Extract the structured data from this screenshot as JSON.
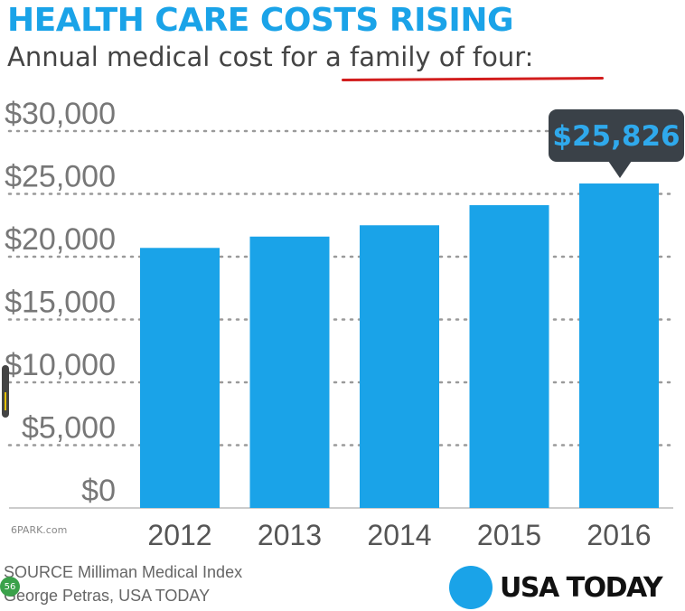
{
  "header": {
    "title": "HEALTH CARE COSTS RISING",
    "subtitle": "Annual medical cost for a family of four:"
  },
  "chart_data": {
    "type": "bar",
    "title": "HEALTH CARE COSTS RISING",
    "subtitle": "Annual medical cost for a family of four:",
    "categories": [
      "2012",
      "2013",
      "2014",
      "2015",
      "2016"
    ],
    "values": [
      20700,
      21600,
      22500,
      24100,
      25826
    ],
    "ylim": [
      0,
      30000
    ],
    "yticks": [
      0,
      5000,
      10000,
      15000,
      20000,
      25000,
      30000
    ],
    "ytick_labels": [
      "$0",
      "$5,000",
      "$10,000",
      "$15,000",
      "$20,000",
      "$25,000",
      "$30,000"
    ],
    "grid": "dotted horizontal",
    "bar_color": "#1aa3e8",
    "annotation": {
      "category": "2016",
      "text": "$25,826"
    }
  },
  "footer": {
    "source_line1": "SOURCE Milliman Medical Index",
    "source_line2": "George Petras, USA TODAY",
    "logo_text": "USA TODAY"
  },
  "overlay": {
    "watermark": "6PARK.com",
    "page_badge": "56"
  },
  "colors": {
    "accent": "#1aa3e8",
    "underline": "#d21d1d",
    "callout_bg": "#3a4148"
  }
}
